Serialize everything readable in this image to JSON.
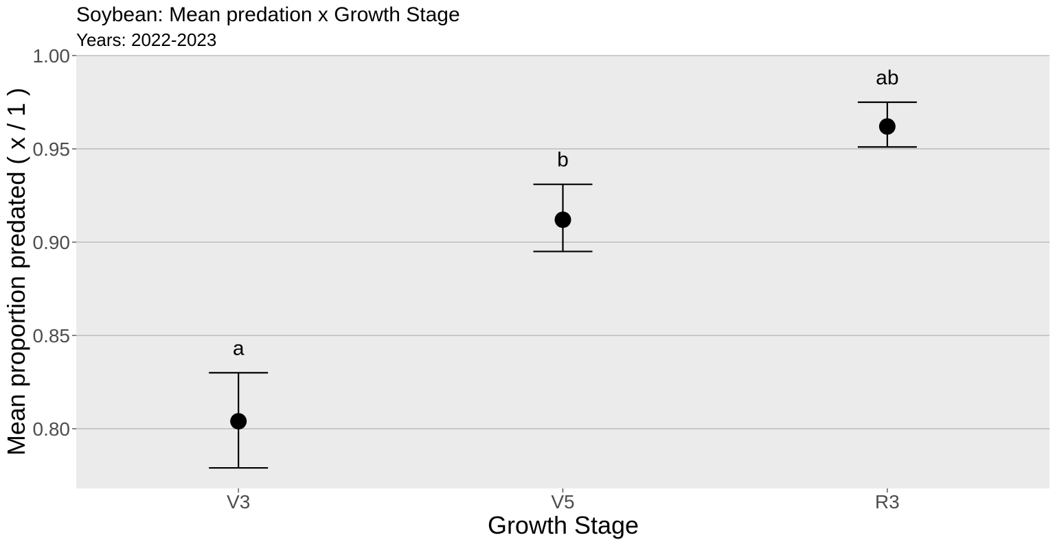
{
  "chart_data": {
    "type": "scatter",
    "title": "Soybean: Mean predation x Growth Stage",
    "subtitle": "Years: 2022-2023",
    "xlabel": "Growth Stage",
    "ylabel": "Mean proportion predated ( x / 1 )",
    "categories": [
      "V3",
      "V5",
      "R3"
    ],
    "means": [
      0.804,
      0.912,
      0.962
    ],
    "lower": [
      0.779,
      0.895,
      0.951
    ],
    "upper": [
      0.83,
      0.931,
      0.975
    ],
    "letters": [
      "a",
      "b",
      "ab"
    ],
    "ylim": [
      0.768,
      1.0
    ],
    "yticks": [
      0.8,
      0.85,
      0.9,
      0.95,
      1.0
    ],
    "ytick_labels": [
      "0.80",
      "0.85",
      "0.90",
      "0.95",
      "1.00"
    ],
    "grid": "horizontal major",
    "legend": "none",
    "colors": {
      "panel": "#ebebeb",
      "grid": "#b3b3b3",
      "marks": "#000000"
    }
  }
}
